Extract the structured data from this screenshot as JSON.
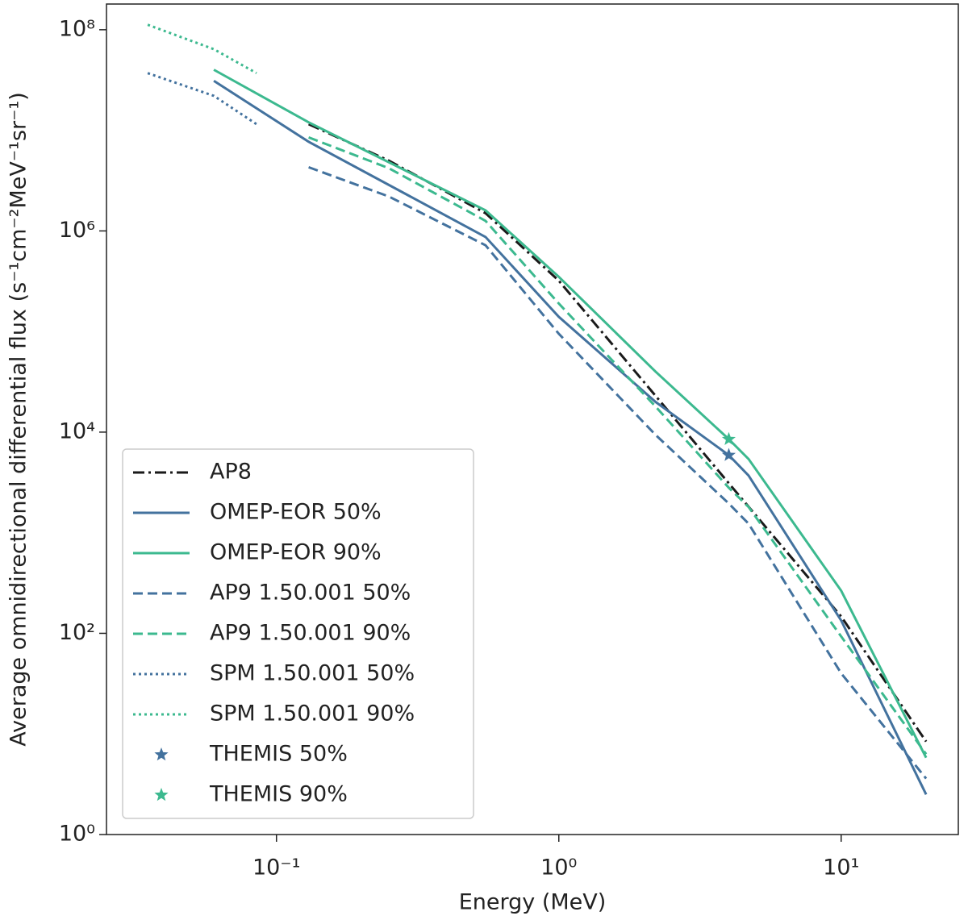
{
  "chart_data": {
    "type": "line",
    "xlabel": "Energy (MeV)",
    "ylabel": "Average omnidirectional differential flux (s⁻¹cm⁻²MeV⁻¹sr⁻¹)",
    "xscale": "log",
    "yscale": "log",
    "xlim": [
      0.025,
      26
    ],
    "ylim": [
      1,
      180000000
    ],
    "xticks": [
      {
        "value": 0.1,
        "label": "10⁻¹"
      },
      {
        "value": 1,
        "label": "10⁰"
      },
      {
        "value": 10,
        "label": "10¹"
      }
    ],
    "yticks": [
      {
        "value": 1,
        "label": "10⁰"
      },
      {
        "value": 100,
        "label": "10²"
      },
      {
        "value": 10000,
        "label": "10⁴"
      },
      {
        "value": 1000000,
        "label": "10⁶"
      },
      {
        "value": 100000000,
        "label": "10⁸"
      }
    ],
    "legend": "lower left",
    "series": [
      {
        "name": "AP8",
        "color": "#1a1a1a",
        "linestyle": "dashdot",
        "x": [
          0.13,
          0.25,
          0.55,
          1.0,
          2.2,
          4,
          10,
          20
        ],
        "values": [
          11500000,
          5000000,
          1500000,
          320000,
          23000,
          3100,
          147,
          8.4
        ]
      },
      {
        "name": "OMEP-EOR 50%",
        "color": "#43729e",
        "linestyle": "solid",
        "x": [
          0.06,
          0.13,
          0.55,
          1.0,
          2.2,
          4,
          4.7,
          10,
          20
        ],
        "values": [
          31000000,
          7700000,
          870000,
          140000,
          20000,
          5900,
          3700,
          134,
          2.5
        ]
      },
      {
        "name": "OMEP-EOR 90%",
        "color": "#3cb98f",
        "linestyle": "solid",
        "x": [
          0.06,
          0.13,
          0.55,
          1.0,
          2.2,
          4,
          4.7,
          10,
          20
        ],
        "values": [
          40000000,
          12000000,
          1600000,
          350000,
          40000,
          8500,
          5400,
          265,
          5.8
        ]
      },
      {
        "name": "AP9 1.50.001 50%",
        "color": "#43729e",
        "linestyle": "dashed",
        "x": [
          0.13,
          0.25,
          0.55,
          1.0,
          2.2,
          4,
          4.7,
          10,
          20
        ],
        "values": [
          4300000,
          2200000,
          720000,
          95000,
          9400,
          1950,
          1230,
          40,
          3.6
        ]
      },
      {
        "name": "AP9 1.50.001 90%",
        "color": "#3cb98f",
        "linestyle": "dashed",
        "x": [
          0.13,
          0.25,
          0.55,
          1.0,
          2.2,
          4,
          4.7,
          10,
          20
        ],
        "values": [
          8500000,
          4200000,
          1260000,
          190000,
          18000,
          2800,
          1800,
          93,
          6.3
        ]
      },
      {
        "name": "SPM 1.50.001 50%",
        "color": "#43729e",
        "linestyle": "dotted",
        "x": [
          0.035,
          0.06,
          0.085
        ],
        "values": [
          37000000,
          22000000,
          11500000
        ]
      },
      {
        "name": "SPM 1.50.001 90%",
        "color": "#3cb98f",
        "linestyle": "dotted",
        "x": [
          0.035,
          0.06,
          0.085
        ],
        "values": [
          112000000,
          64000000,
          37000000
        ]
      },
      {
        "name": "THEMIS 50%",
        "color": "#43729e",
        "marker": "star",
        "x": [
          4
        ],
        "values": [
          5900
        ]
      },
      {
        "name": "THEMIS 90%",
        "color": "#3cb98f",
        "marker": "star",
        "x": [
          4
        ],
        "values": [
          8500
        ]
      }
    ]
  }
}
